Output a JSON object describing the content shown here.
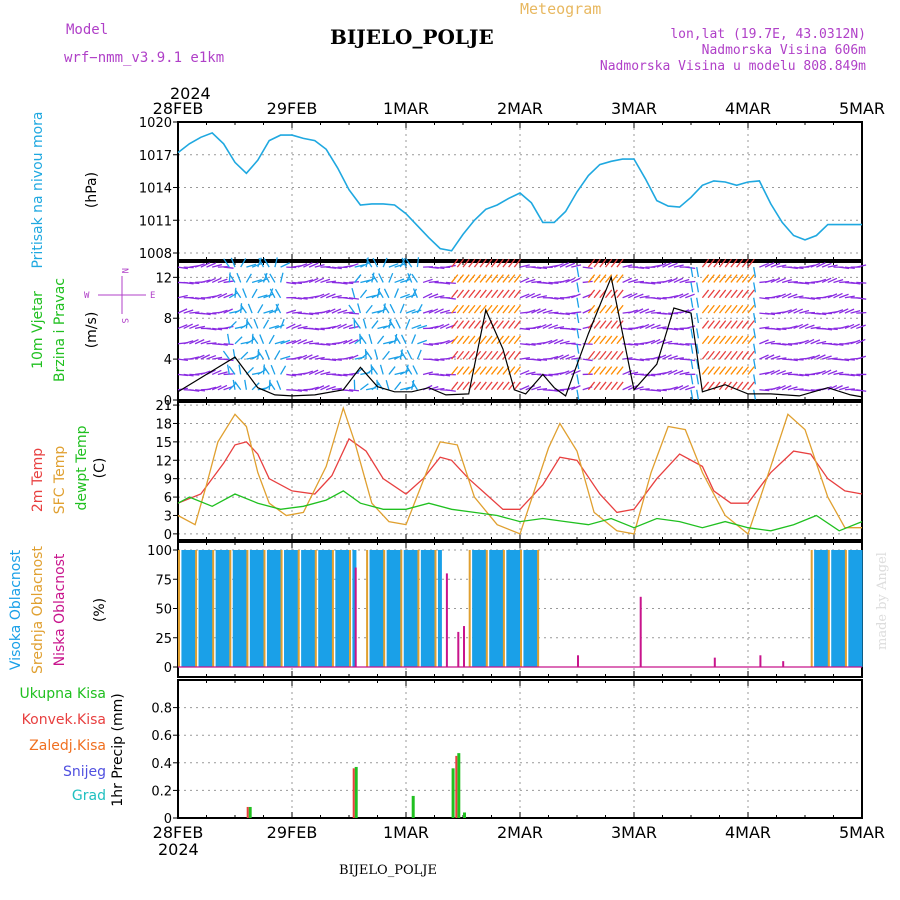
{
  "header": {
    "model_label": "Model",
    "model_name": "wrf−nmm_v3.9.1  e1km",
    "meteogram_label": "Meteogram",
    "station_title": "BIJELO_POLJE",
    "location": "lon,lat (19.7E, 43.0312N)",
    "altitude": "Nadmorska Visina 606m",
    "model_altitude": "Nadmorska Visina u modelu 808.849m",
    "year_top": "2024",
    "year_bottom": "2024",
    "footer_station": "BIJELO_POLJE",
    "credit": "made by Angel"
  },
  "wind_compass": {
    "north": "N",
    "south": "S",
    "east": "E",
    "west": "W"
  },
  "colors": {
    "pressure": "#1fa8e0",
    "temp2m": "#e84040",
    "sfc": "#e0a030",
    "dew": "#20c020",
    "high_cloud": "#1aa0e8",
    "mid_cloud": "#e0a030",
    "low_cloud": "#c8148c",
    "total_precip": "#20c020",
    "conv_precip": "#e84040",
    "frz_precip": "#f07020",
    "snow": "#5050e0",
    "hail": "#20c0c0"
  },
  "chart_data": [
    {
      "type": "line",
      "panel": "pressure",
      "ylabel_lines": [
        "Pritisak na nivou mora",
        "(hPa)"
      ],
      "ylim": [
        1008,
        1020
      ],
      "yticks": [
        1008,
        1011,
        1014,
        1017,
        1020
      ],
      "x_day_labels": [
        "28FEB",
        "29FEB",
        "1MAR",
        "2MAR",
        "3MAR",
        "4MAR",
        "5MAR"
      ],
      "grid": true,
      "series": [
        {
          "x": [
            0,
            0.1,
            0.2,
            0.3,
            0.4,
            0.5,
            0.6,
            0.7,
            0.8,
            0.9,
            1.0,
            1.1,
            1.2,
            1.3,
            1.4,
            1.5,
            1.6,
            1.7,
            1.8,
            1.9,
            2.0,
            2.1,
            2.2,
            2.3,
            2.4,
            2.5,
            2.6,
            2.7,
            2.8,
            2.9,
            3.0,
            3.1,
            3.2,
            3.3,
            3.4,
            3.5,
            3.6,
            3.7,
            3.8,
            3.9,
            4.0,
            4.1,
            4.2,
            4.3,
            4.4,
            4.5,
            4.6,
            4.7,
            4.8,
            4.9,
            5.0,
            5.1,
            5.2,
            5.3,
            5.4,
            5.5,
            5.6,
            5.7,
            5.8,
            5.9,
            6.0
          ],
          "y": [
            1017.2,
            1018.0,
            1018.6,
            1019.0,
            1018.0,
            1016.3,
            1015.3,
            1016.5,
            1018.3,
            1018.8,
            1018.8,
            1018.5,
            1018.3,
            1017.5,
            1015.8,
            1013.8,
            1012.4,
            1012.5,
            1012.5,
            1012.4,
            1011.6,
            1010.5,
            1009.4,
            1008.4,
            1008.2,
            1009.7,
            1011.0,
            1012.0,
            1012.4,
            1013.0,
            1013.5,
            1012.6,
            1010.8,
            1010.8,
            1011.8,
            1013.6,
            1015.1,
            1016.1,
            1016.4,
            1016.6,
            1016.6,
            1014.8,
            1012.8,
            1012.3,
            1012.2,
            1013.1,
            1014.2,
            1014.6,
            1014.5,
            1014.2,
            1014.5,
            1014.6,
            1012.5,
            1010.8,
            1009.6,
            1009.2,
            1009.6,
            1010.6,
            1010.6,
            1010.6,
            1010.6
          ]
        }
      ]
    },
    {
      "type": "line",
      "panel": "wind",
      "ylabel_lines": [
        "10m Vjetar",
        "Brzina i Pravac",
        "(m/s)"
      ],
      "ylim": [
        0,
        13.5
      ],
      "yticks": [
        0,
        4,
        8,
        12
      ],
      "grid": true,
      "series": [
        {
          "x": [
            0,
            0.25,
            0.5,
            0.7,
            0.85,
            1.0,
            1.2,
            1.45,
            1.6,
            1.75,
            1.9,
            2.05,
            2.2,
            2.35,
            2.55,
            2.7,
            2.85,
            2.95,
            3.05,
            3.2,
            3.3,
            3.4,
            3.6,
            3.8,
            4.0,
            4.2,
            4.35,
            4.5,
            4.6,
            4.8,
            5.0,
            5.2,
            5.45,
            5.7,
            5.9,
            6.0
          ],
          "y": [
            0.8,
            2.5,
            4.2,
            1.2,
            0.5,
            0.4,
            0.5,
            1.0,
            3.2,
            1.3,
            0.8,
            0.8,
            1.2,
            0.5,
            0.6,
            8.8,
            5.0,
            1.0,
            0.6,
            2.5,
            1.2,
            0.4,
            6.5,
            12.0,
            1.0,
            3.5,
            9.0,
            8.5,
            0.8,
            1.5,
            0.6,
            0.6,
            0.4,
            1.2,
            0.5,
            0.3
          ]
        }
      ]
    },
    {
      "type": "line",
      "panel": "temperature",
      "ylabel_lines": [
        "2m Temp",
        "SFC Temp",
        "dewpt Temp",
        "(C)"
      ],
      "ylim": [
        -1,
        21.5
      ],
      "yticks": [
        0,
        3,
        6,
        9,
        12,
        15,
        18,
        21
      ],
      "grid": true,
      "series": [
        {
          "name": "2m Temp",
          "x": [
            0,
            0.2,
            0.4,
            0.5,
            0.6,
            0.7,
            0.8,
            1.0,
            1.2,
            1.35,
            1.5,
            1.65,
            1.8,
            2.0,
            2.15,
            2.3,
            2.4,
            2.55,
            2.7,
            2.85,
            3.0,
            3.2,
            3.35,
            3.5,
            3.7,
            3.85,
            4.0,
            4.2,
            4.4,
            4.6,
            4.7,
            4.85,
            5.0,
            5.2,
            5.4,
            5.55,
            5.7,
            5.85,
            6.0
          ],
          "y": [
            5.0,
            6.5,
            11.5,
            14.5,
            15.0,
            13.0,
            9.0,
            7.0,
            6.5,
            9.5,
            15.5,
            13.5,
            9.0,
            6.5,
            9.0,
            12.5,
            12.0,
            9.0,
            6.5,
            4.0,
            4.0,
            8.0,
            12.5,
            12.0,
            6.5,
            3.5,
            4.0,
            9.0,
            13.0,
            11.0,
            7.0,
            5.0,
            5.0,
            10.0,
            13.5,
            13.0,
            9.0,
            7.0,
            6.5
          ]
        },
        {
          "name": "SFC Temp",
          "x": [
            0,
            0.15,
            0.25,
            0.35,
            0.5,
            0.6,
            0.7,
            0.8,
            0.95,
            1.1,
            1.3,
            1.45,
            1.55,
            1.7,
            1.85,
            2.0,
            2.2,
            2.3,
            2.45,
            2.6,
            2.8,
            3.0,
            3.25,
            3.35,
            3.5,
            3.65,
            3.85,
            4.0,
            4.15,
            4.3,
            4.45,
            4.6,
            4.8,
            5.0,
            5.2,
            5.35,
            5.5,
            5.7,
            5.85,
            6.0
          ],
          "y": [
            3.0,
            1.5,
            8.0,
            15.0,
            19.5,
            17.5,
            10.0,
            5.0,
            3.0,
            3.5,
            11.0,
            20.5,
            15.0,
            5.0,
            2.0,
            1.5,
            11.0,
            15.0,
            14.5,
            6.0,
            1.5,
            0.0,
            14.0,
            18.0,
            13.5,
            3.5,
            0.5,
            0.0,
            10.0,
            17.5,
            17.0,
            10.0,
            3.0,
            0.0,
            11.0,
            19.5,
            17.0,
            6.0,
            1.0,
            1.0
          ]
        },
        {
          "name": "dewpt Temp",
          "x": [
            0,
            0.1,
            0.3,
            0.5,
            0.7,
            0.9,
            1.1,
            1.3,
            1.45,
            1.6,
            1.8,
            2.0,
            2.2,
            2.4,
            2.6,
            2.8,
            3.0,
            3.2,
            3.4,
            3.6,
            3.8,
            4.0,
            4.2,
            4.4,
            4.6,
            4.8,
            5.0,
            5.2,
            5.4,
            5.6,
            5.8,
            6.0
          ],
          "y": [
            5.0,
            6.0,
            4.5,
            6.5,
            5.0,
            4.0,
            4.5,
            5.5,
            7.0,
            5.0,
            4.0,
            4.0,
            5.0,
            4.0,
            3.5,
            3.0,
            2.0,
            2.5,
            2.0,
            1.5,
            2.5,
            1.0,
            2.5,
            2.0,
            1.0,
            2.0,
            1.0,
            0.5,
            1.5,
            3.0,
            0.5,
            2.0
          ]
        }
      ]
    },
    {
      "type": "bar",
      "panel": "clouds",
      "ylabel_lines": [
        "Visoka Oblacnost",
        "Srednja Oblacnost",
        "Niska Oblacnost",
        "(%)"
      ],
      "ylim": [
        0,
        100
      ],
      "yticks": [
        0,
        25,
        50,
        75,
        100
      ],
      "grid": true,
      "series": [
        {
          "name": "Visoka Oblacnost",
          "segments": [
            [
              0.0,
              1.55,
              100
            ],
            [
              1.65,
              2.3,
              100
            ],
            [
              2.55,
              3.15,
              100
            ],
            [
              5.55,
              6.0,
              100
            ]
          ]
        },
        {
          "name": "Srednja Oblacnost",
          "segments": [
            [
              0.0,
              1.55,
              100
            ],
            [
              1.65,
              2.3,
              100
            ],
            [
              2.55,
              3.15,
              100
            ],
            [
              5.55,
              6.0,
              100
            ]
          ]
        },
        {
          "name": "Niska Oblacnost",
          "x": [
            1.55,
            2.35,
            2.45,
            2.5,
            3.5,
            4.05,
            4.7,
            5.1,
            5.3
          ],
          "values": [
            85,
            80,
            30,
            35,
            10,
            60,
            8,
            10,
            5
          ]
        }
      ]
    },
    {
      "type": "bar",
      "panel": "precip",
      "ylabel_lines": [
        "Ukupna Kisa",
        "Konvek.Kisa",
        "Zaledj.Kisa",
        "Snijeg",
        "Grad",
        "1hr Precip (mm)"
      ],
      "ylim": [
        0,
        1.0
      ],
      "yticks": [
        0,
        0.2,
        0.4,
        0.6,
        0.8
      ],
      "grid": true,
      "series": [
        {
          "name": "Ukupna Kisa",
          "x": [
            0.62,
            1.55,
            2.05,
            2.4,
            2.45,
            2.5
          ],
          "values": [
            0.08,
            0.37,
            0.16,
            0.36,
            0.47,
            0.04
          ]
        },
        {
          "name": "Konvek.Kisa",
          "x": [
            0.62,
            1.55,
            2.45
          ],
          "values": [
            0.08,
            0.36,
            0.45
          ]
        }
      ]
    }
  ]
}
